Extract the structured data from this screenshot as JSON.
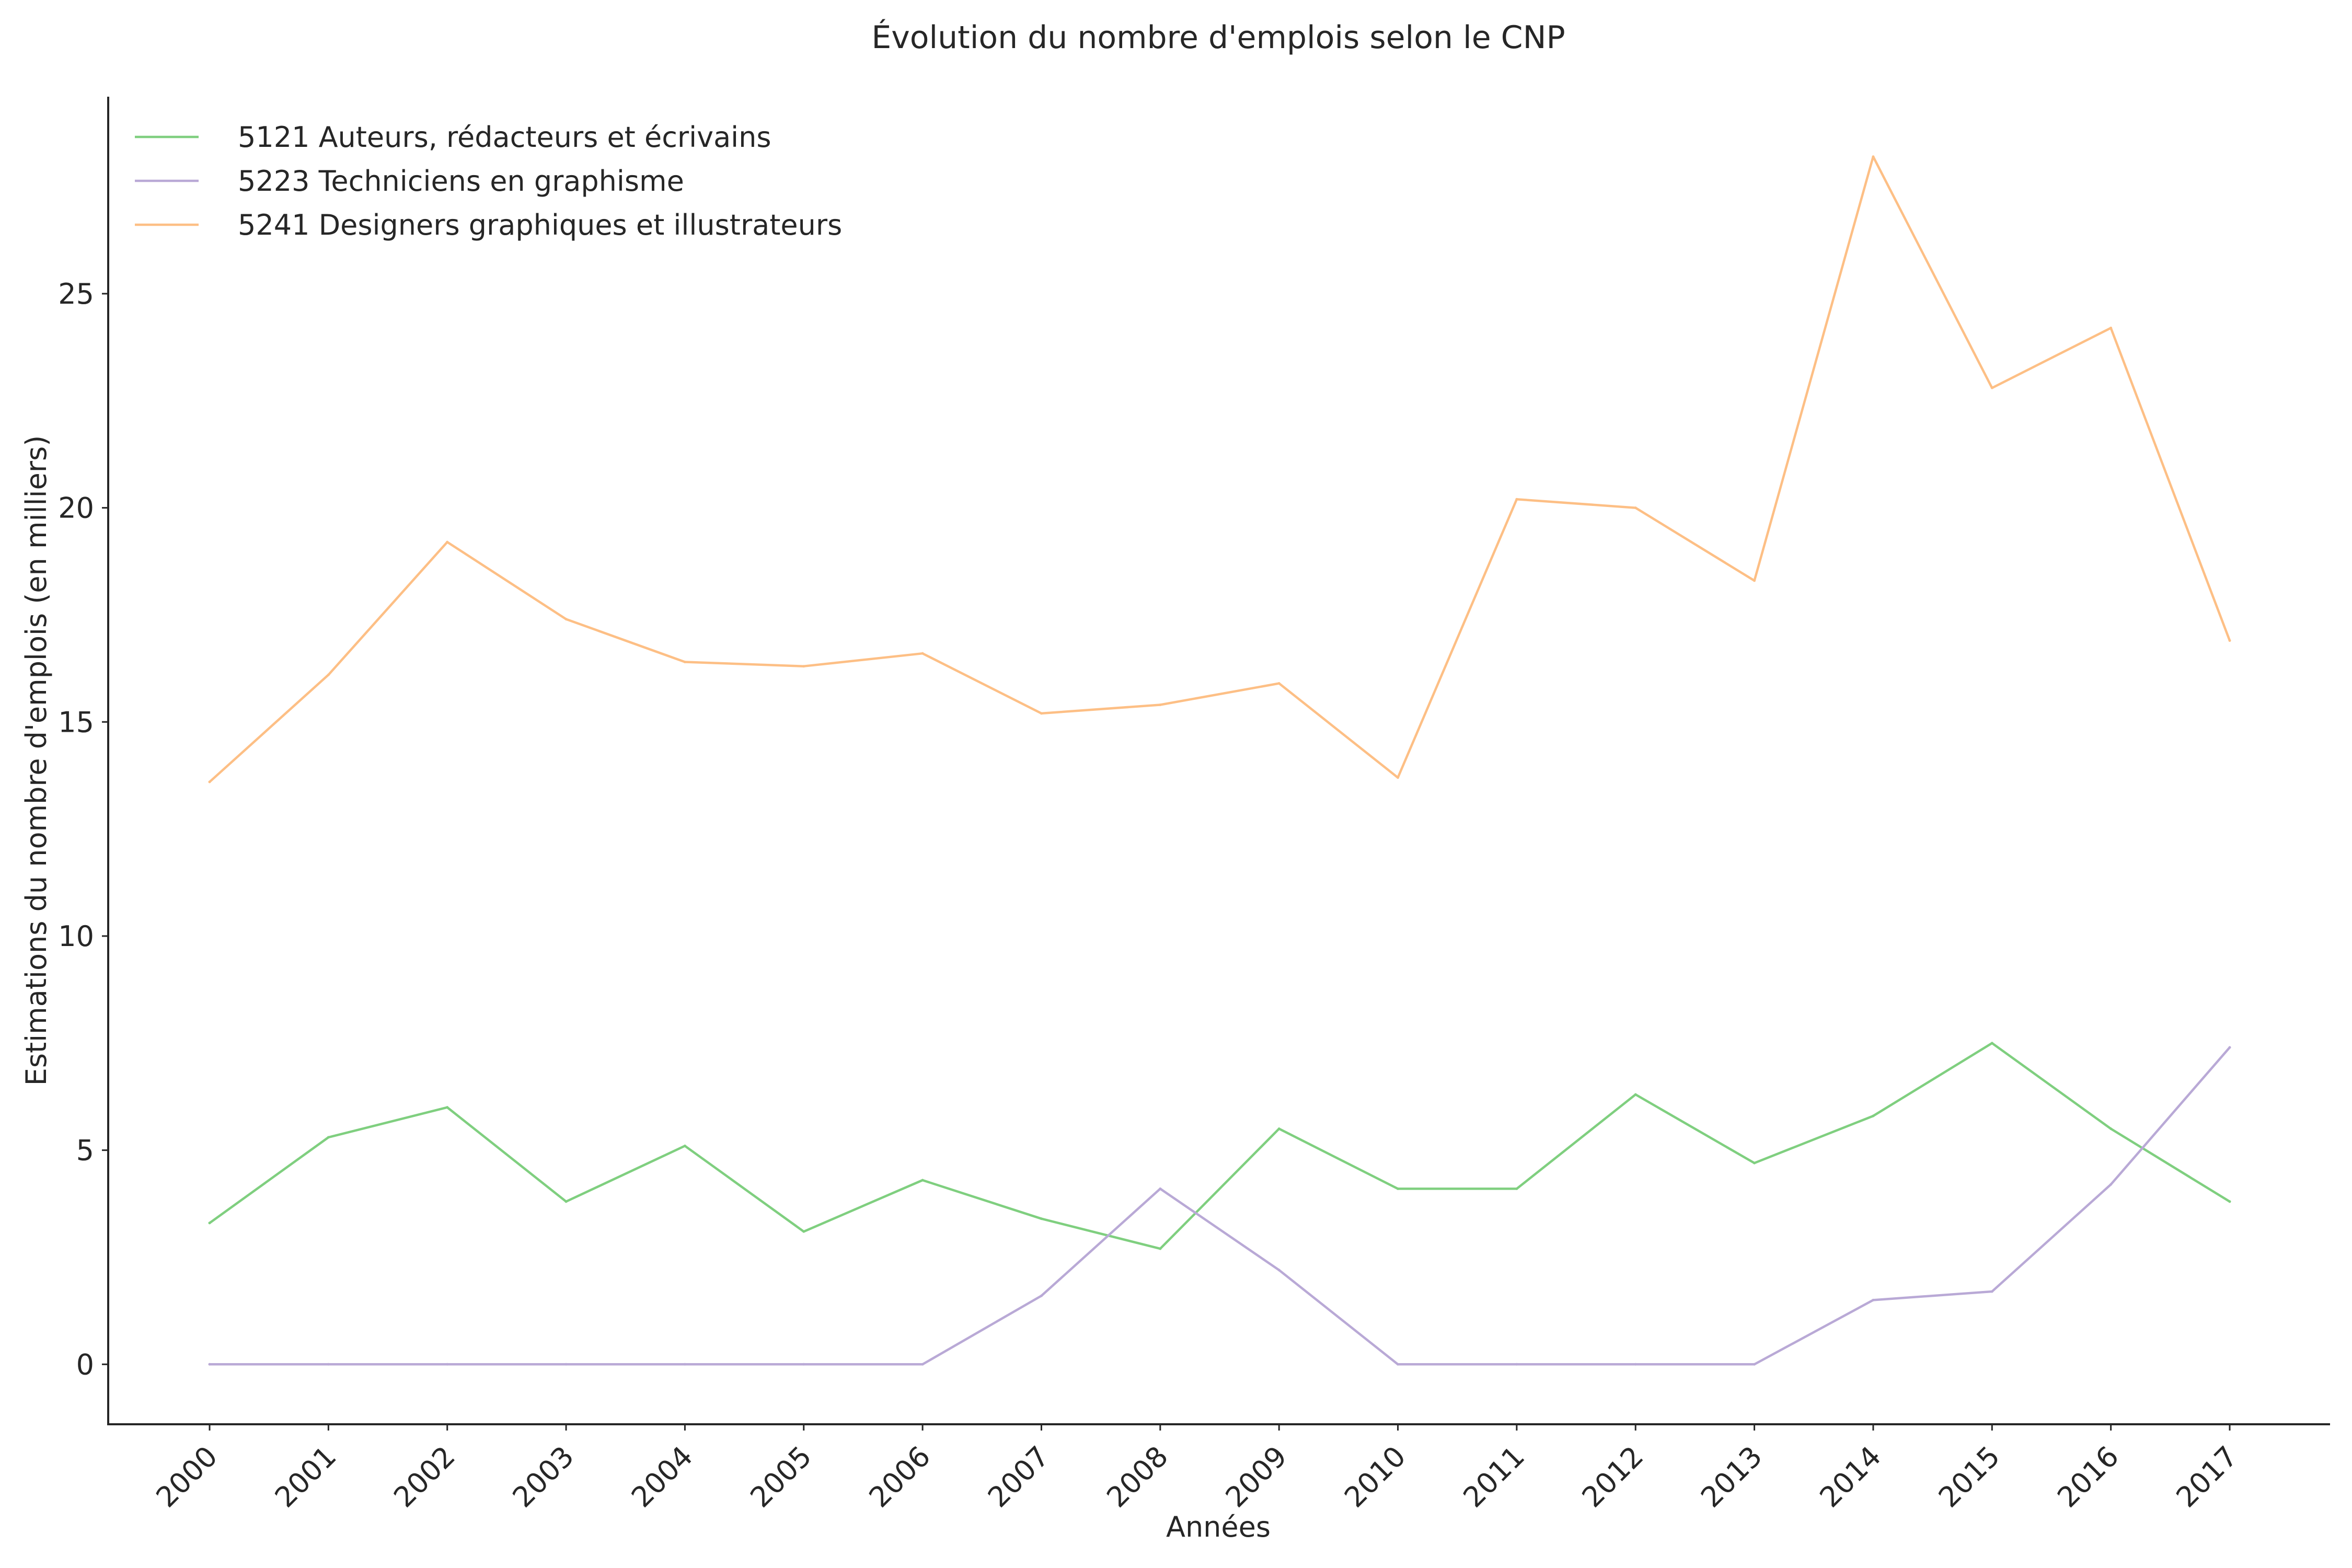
{
  "chart_data": {
    "type": "line",
    "title": "Évolution du nombre d'emplois selon le CNP",
    "xlabel": "Années",
    "ylabel": "Estimations du nombre d'emplois (en milliers)",
    "categories": [
      "2000",
      "2001",
      "2002",
      "2003",
      "2004",
      "2005",
      "2006",
      "2007",
      "2008",
      "2009",
      "2010",
      "2011",
      "2012",
      "2013",
      "2014",
      "2015",
      "2016",
      "2017"
    ],
    "yticks": [
      0,
      5,
      10,
      15,
      20,
      25
    ],
    "ylim": [
      -1.4,
      29.6
    ],
    "grid": false,
    "legend_position": "top-left",
    "series": [
      {
        "name": "5121 Auteurs, rédacteurs et écrivains",
        "color": "#7fcf7f",
        "values": [
          3.3,
          5.3,
          6.0,
          3.8,
          5.1,
          3.1,
          4.3,
          3.4,
          2.7,
          5.5,
          4.1,
          4.1,
          6.3,
          4.7,
          5.8,
          7.5,
          5.5,
          3.8
        ]
      },
      {
        "name": "5223 Techniciens en graphisme",
        "color": "#b9a9d6",
        "values": [
          0,
          0,
          0,
          0,
          0,
          0,
          0,
          1.6,
          4.1,
          2.2,
          0,
          0,
          0,
          0,
          1.5,
          1.7,
          4.2,
          7.4
        ]
      },
      {
        "name": "5241 Designers graphiques et illustrateurs",
        "color": "#fdbf85",
        "values": [
          13.6,
          16.1,
          19.2,
          17.4,
          16.4,
          16.3,
          16.6,
          15.2,
          15.4,
          15.9,
          13.7,
          20.2,
          20.0,
          18.3,
          28.2,
          22.8,
          24.2,
          16.9
        ]
      }
    ]
  }
}
